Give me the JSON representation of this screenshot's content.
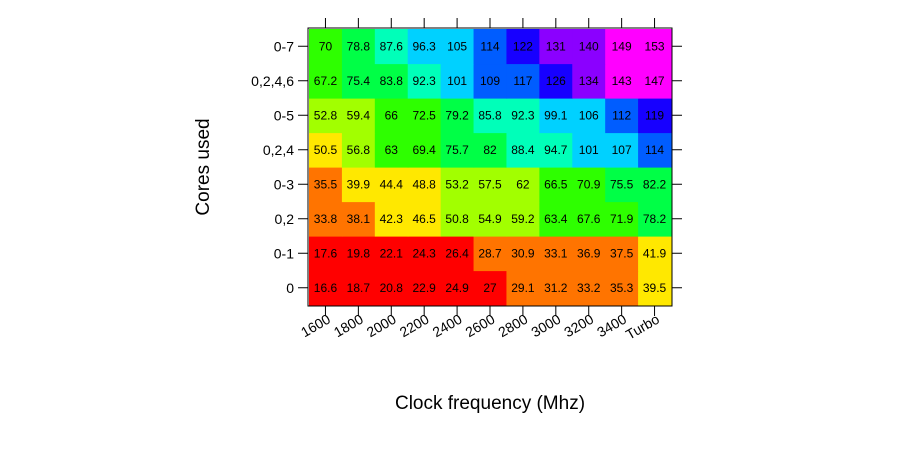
{
  "chart_data": {
    "type": "heatmap",
    "xlabel": "Clock frequency (Mhz)",
    "ylabel": "Cores used",
    "x_categories": [
      "1600",
      "1800",
      "2000",
      "2200",
      "2400",
      "2600",
      "2800",
      "3000",
      "3200",
      "3400",
      "Turbo"
    ],
    "y_categories": [
      "0",
      "0-1",
      "0,2",
      "0-3",
      "0,2,4",
      "0-5",
      "0,2,4,6",
      "0-7"
    ],
    "values": [
      [
        16.6,
        18.7,
        20.8,
        22.9,
        24.9,
        27,
        29.1,
        31.2,
        33.2,
        35.3,
        39.5
      ],
      [
        17.6,
        19.8,
        22.1,
        24.3,
        26.4,
        28.7,
        30.9,
        33.1,
        36.9,
        37.5,
        41.9
      ],
      [
        33.8,
        38.1,
        42.3,
        46.5,
        50.8,
        54.9,
        59.2,
        63.4,
        67.6,
        71.9,
        78.2
      ],
      [
        35.5,
        39.9,
        44.4,
        48.8,
        53.2,
        57.5,
        62,
        66.5,
        70.9,
        75.5,
        82.2
      ],
      [
        50.5,
        56.8,
        63,
        69.4,
        75.7,
        82,
        88.4,
        94.7,
        101,
        107,
        114
      ],
      [
        52.8,
        59.4,
        66,
        72.5,
        79.2,
        85.8,
        92.3,
        99.1,
        106,
        112,
        119
      ],
      [
        67.2,
        75.4,
        83.8,
        92.3,
        101,
        109,
        117,
        126,
        134,
        143,
        147
      ],
      [
        70,
        78.8,
        87.6,
        96.3,
        105,
        114,
        122,
        131,
        140,
        149,
        153
      ]
    ],
    "value_labels": [
      [
        "16.6",
        "18.7",
        "20.8",
        "22.9",
        "24.9",
        "27",
        "29.1",
        "31.2",
        "33.2",
        "35.3",
        "39.5"
      ],
      [
        "17.6",
        "19.8",
        "22.1",
        "24.3",
        "26.4",
        "28.7",
        "30.9",
        "33.1",
        "36.9",
        "37.5",
        "41.9"
      ],
      [
        "33.8",
        "38.1",
        "42.3",
        "46.5",
        "50.8",
        "54.9",
        "59.2",
        "63.4",
        "67.6",
        "71.9",
        "78.2"
      ],
      [
        "35.5",
        "39.9",
        "44.4",
        "48.8",
        "53.2",
        "57.5",
        "62",
        "66.5",
        "70.9",
        "75.5",
        "82.2"
      ],
      [
        "50.5",
        "56.8",
        "63",
        "69.4",
        "75.7",
        "82",
        "88.4",
        "94.7",
        "101",
        "107",
        "114"
      ],
      [
        "52.8",
        "59.4",
        "66",
        "72.5",
        "79.2",
        "85.8",
        "92.3",
        "99.1",
        "106",
        "112",
        "119"
      ],
      [
        "67.2",
        "75.4",
        "83.8",
        "92.3",
        "101",
        "109",
        "117",
        "126",
        "134",
        "143",
        "147"
      ],
      [
        "70",
        "78.8",
        "87.6",
        "96.3",
        "105",
        "114",
        "122",
        "131",
        "140",
        "149",
        "153"
      ]
    ],
    "color_scale": "rainbow (red at low values through orange, yellow, green, cyan, blue to magenta at high values)",
    "grid": false,
    "legend": "none"
  }
}
